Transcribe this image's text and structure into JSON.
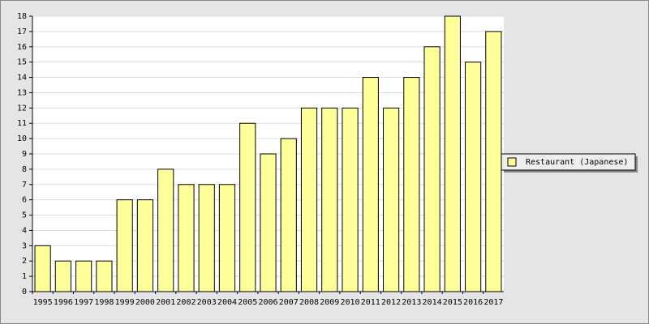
{
  "chart_data": {
    "type": "bar",
    "categories": [
      "1995",
      "1996",
      "1997",
      "1998",
      "1999",
      "2000",
      "2001",
      "2002",
      "2003",
      "2004",
      "2005",
      "2006",
      "2007",
      "2008",
      "2009",
      "2010",
      "2011",
      "2012",
      "2013",
      "2014",
      "2015",
      "2016",
      "2017"
    ],
    "series": [
      {
        "name": "Restaurant (Japanese)",
        "color": "#ffff99",
        "values": [
          3,
          2,
          2,
          2,
          6,
          6,
          8,
          7,
          7,
          7,
          11,
          9,
          10,
          12,
          12,
          12,
          14,
          12,
          14,
          16,
          18,
          15,
          17
        ]
      }
    ],
    "ylim": [
      0,
      18
    ],
    "yticks": [
      0,
      1,
      2,
      3,
      4,
      5,
      6,
      7,
      8,
      9,
      10,
      11,
      12,
      13,
      14,
      15,
      16,
      17,
      18
    ],
    "grid": true,
    "legend": "right"
  }
}
